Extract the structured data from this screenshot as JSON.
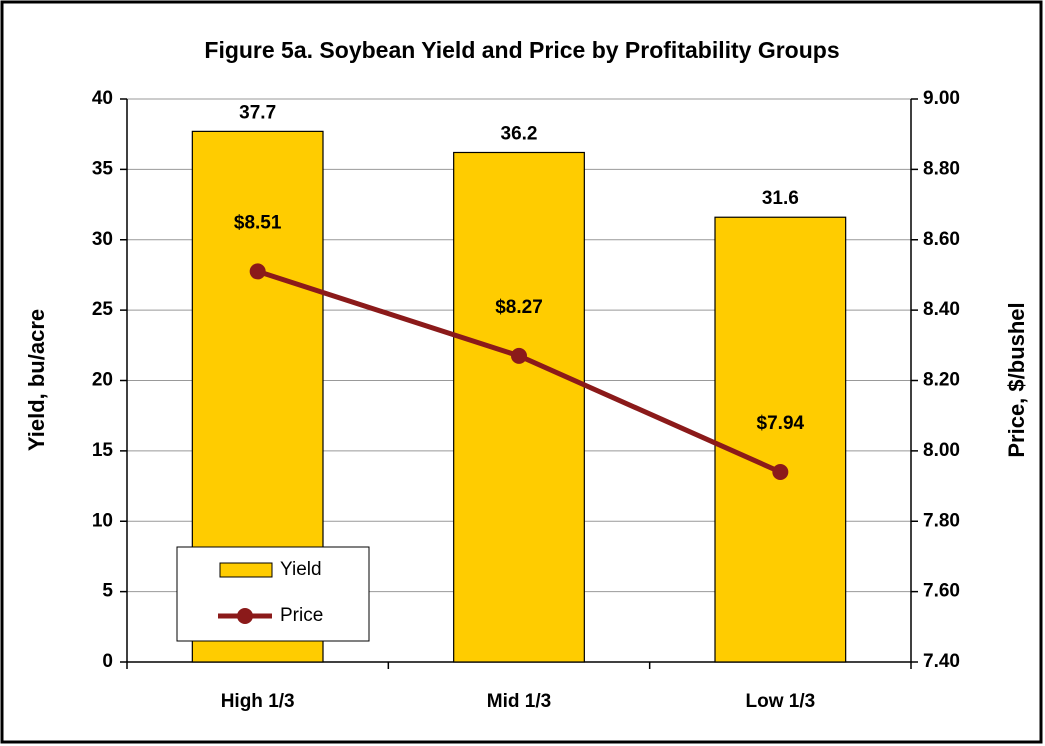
{
  "chart_data": {
    "type": "bar",
    "title": "Figure 5a. Soybean Yield and Price by Profitability Groups",
    "y_label": "Yield, bu/acre",
    "y2_label": "Price, $/bushel",
    "categories": [
      "High 1/3",
      "Mid 1/3",
      "Low 1/3"
    ],
    "series": [
      {
        "name": "Yield",
        "type": "bar",
        "color": "#ffcc00",
        "values": [
          37.7,
          36.2,
          31.6
        ]
      },
      {
        "name": "Price",
        "type": "line",
        "axis": "y2",
        "color": "#8b1a1a",
        "values": [
          8.51,
          8.27,
          7.94
        ],
        "value_labels": [
          "$8.51",
          "$8.27",
          "$7.94"
        ]
      }
    ],
    "ylim": [
      0,
      40
    ],
    "yticks": [
      0,
      5,
      10,
      15,
      20,
      25,
      30,
      35,
      40
    ],
    "y2lim": [
      7.4,
      9.0
    ],
    "y2ticks": [
      {
        "value": 7.4,
        "label": "7.40"
      },
      {
        "value": 7.6,
        "label": "7.60"
      },
      {
        "value": 7.8,
        "label": "7.80"
      },
      {
        "value": 8.0,
        "label": "8.00"
      },
      {
        "value": 8.2,
        "label": "8.20"
      },
      {
        "value": 8.4,
        "label": "8.40"
      },
      {
        "value": 8.6,
        "label": "8.60"
      },
      {
        "value": 8.8,
        "label": "8.80"
      },
      {
        "value": 9.0,
        "label": "9.00"
      }
    ],
    "grid": true,
    "legend": "lower left"
  }
}
